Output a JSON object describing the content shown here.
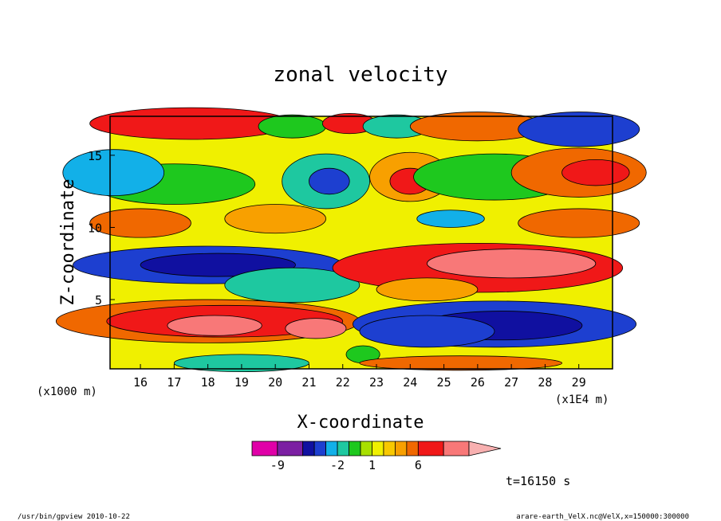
{
  "chart_data": {
    "type": "heatmap",
    "title": "zonal velocity",
    "xlabel": "X-coordinate",
    "ylabel": "Z-coordinate",
    "x_unit_left": "(x1000 m)",
    "x_unit_right": "(x1E4 m)",
    "x_ticks": [
      16,
      17,
      18,
      19,
      20,
      21,
      22,
      23,
      24,
      25,
      26,
      27,
      28,
      29
    ],
    "y_ticks": [
      5,
      10,
      15
    ],
    "xlim": [
      15.1,
      30.0
    ],
    "ylim": [
      0.2,
      17.7
    ],
    "time_label": "t=16150 s",
    "colorbar": {
      "levels": [
        -12,
        -9,
        -6,
        -4,
        -3,
        -2,
        -1,
        0,
        1,
        2,
        3,
        4,
        6,
        9,
        12
      ],
      "colors": [
        "#e000a8",
        "#7b1fa2",
        "#1010a0",
        "#1d3fd0",
        "#12b0e8",
        "#1ec8a0",
        "#1ec81e",
        "#a8e000",
        "#f0f000",
        "#f8c800",
        "#f8a000",
        "#f06800",
        "#f01818",
        "#f87878",
        "#f8b0b0"
      ],
      "tick_labels": [
        {
          "value": -9,
          "label": "-9"
        },
        {
          "value": -2,
          "label": "-2"
        },
        {
          "value": 1,
          "label": "1"
        },
        {
          "value": 6,
          "label": "6"
        }
      ]
    },
    "blobs": [
      {
        "x": 18.0,
        "z": 3.5,
        "rx": 4.5,
        "rz": 1.5,
        "v": 3.5
      },
      {
        "x": 18.5,
        "z": 3.5,
        "rx": 3.5,
        "rz": 1.1,
        "v": 5.0
      },
      {
        "x": 18.2,
        "z": 3.2,
        "rx": 1.4,
        "rz": 0.7,
        "v": 8.0
      },
      {
        "x": 21.2,
        "z": 3.0,
        "rx": 0.9,
        "rz": 0.7,
        "v": 6.0
      },
      {
        "x": 26.5,
        "z": 3.3,
        "rx": 4.2,
        "rz": 1.6,
        "v": -4.5
      },
      {
        "x": 26.7,
        "z": 3.2,
        "rx": 2.4,
        "rz": 1.0,
        "v": -7.0
      },
      {
        "x": 24.5,
        "z": 2.8,
        "rx": 2.0,
        "rz": 1.1,
        "v": -5.0
      },
      {
        "x": 18.0,
        "z": 7.4,
        "rx": 4.0,
        "rz": 1.3,
        "v": -5.0
      },
      {
        "x": 18.3,
        "z": 7.4,
        "rx": 2.3,
        "rz": 0.8,
        "v": -8.0
      },
      {
        "x": 20.5,
        "z": 6.0,
        "rx": 2.0,
        "rz": 1.2,
        "v": -3.0
      },
      {
        "x": 26.0,
        "z": 7.2,
        "rx": 4.3,
        "rz": 1.7,
        "v": 4.0
      },
      {
        "x": 27.0,
        "z": 7.5,
        "rx": 2.5,
        "rz": 1.0,
        "v": 7.0
      },
      {
        "x": 24.5,
        "z": 5.7,
        "rx": 1.5,
        "rz": 0.8,
        "v": 2.5
      },
      {
        "x": 17.0,
        "z": 13.0,
        "rx": 2.4,
        "rz": 1.4,
        "v": -1.5
      },
      {
        "x": 15.2,
        "z": 13.8,
        "rx": 1.5,
        "rz": 1.6,
        "v": -4.0
      },
      {
        "x": 21.5,
        "z": 13.2,
        "rx": 1.3,
        "rz": 1.9,
        "v": -3.0
      },
      {
        "x": 21.6,
        "z": 13.2,
        "rx": 0.6,
        "rz": 0.9,
        "v": -6.0
      },
      {
        "x": 24.0,
        "z": 13.5,
        "rx": 1.2,
        "rz": 1.7,
        "v": 2.5
      },
      {
        "x": 24.0,
        "z": 13.2,
        "rx": 0.6,
        "rz": 0.9,
        "v": 5.0
      },
      {
        "x": 26.5,
        "z": 13.5,
        "rx": 2.4,
        "rz": 1.6,
        "v": -1.5
      },
      {
        "x": 29.0,
        "z": 13.8,
        "rx": 2.0,
        "rz": 1.7,
        "v": 3.5
      },
      {
        "x": 29.5,
        "z": 13.8,
        "rx": 1.0,
        "rz": 0.9,
        "v": 5.5
      },
      {
        "x": 16.0,
        "z": 10.3,
        "rx": 1.5,
        "rz": 1.0,
        "v": 3.0
      },
      {
        "x": 20.0,
        "z": 10.6,
        "rx": 1.5,
        "rz": 1.0,
        "v": 2.5
      },
      {
        "x": 25.2,
        "z": 10.6,
        "rx": 1.0,
        "rz": 0.6,
        "v": -4.0
      },
      {
        "x": 29.0,
        "z": 10.3,
        "rx": 1.8,
        "rz": 1.0,
        "v": 3.5
      },
      {
        "x": 17.5,
        "z": 17.2,
        "rx": 3.0,
        "rz": 1.1,
        "v": 5.5
      },
      {
        "x": 20.5,
        "z": 17.0,
        "rx": 1.0,
        "rz": 0.8,
        "v": -2.0
      },
      {
        "x": 22.2,
        "z": 17.2,
        "rx": 0.8,
        "rz": 0.7,
        "v": 4.0
      },
      {
        "x": 23.6,
        "z": 17.0,
        "rx": 1.0,
        "rz": 0.8,
        "v": -3.0
      },
      {
        "x": 26.0,
        "z": 17.0,
        "rx": 2.0,
        "rz": 1.0,
        "v": 3.0
      },
      {
        "x": 29.0,
        "z": 16.8,
        "rx": 1.8,
        "rz": 1.2,
        "v": -6.0
      },
      {
        "x": 22.6,
        "z": 1.2,
        "rx": 0.5,
        "rz": 0.6,
        "v": -2.0
      },
      {
        "x": 19.0,
        "z": 0.6,
        "rx": 2.0,
        "rz": 0.6,
        "v": -3.0
      },
      {
        "x": 25.5,
        "z": 0.6,
        "rx": 3.0,
        "rz": 0.5,
        "v": 3.0
      }
    ]
  },
  "footer": {
    "left": "/usr/bin/gpview  2010-10-22",
    "right": "arare-earth_VelX.nc@VelX,x=150000:300000"
  }
}
